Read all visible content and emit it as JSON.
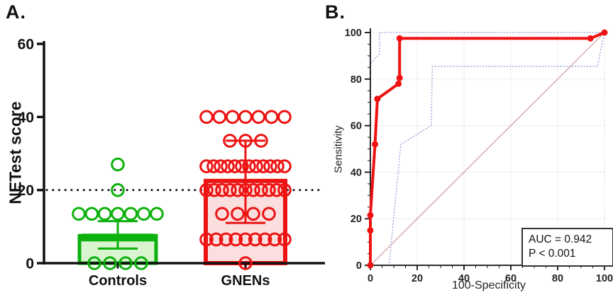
{
  "figure": {
    "background": "#ffffff",
    "panels": [
      {
        "label": "A."
      },
      {
        "label": "B."
      }
    ]
  },
  "chart_data": [
    {
      "panel": "A",
      "type": "bar",
      "title": "",
      "ylabel": "NETest score",
      "xlabel": "",
      "ylim": [
        0,
        60
      ],
      "yticks": [
        0,
        20,
        40,
        60
      ],
      "threshold_y": 20,
      "grid": false,
      "categories": [
        "Controls",
        "GNENs"
      ],
      "series": [
        {
          "name": "Controls",
          "color": "#0db10d",
          "fill": "#d8f5d0",
          "bar_value": 7.5,
          "error_low": 4,
          "error_high": 11.5,
          "points": [
            {
              "value": 0,
              "n": 4
            },
            {
              "value": 13.5,
              "n": 7
            },
            {
              "value": 20,
              "n": 1
            },
            {
              "value": 27,
              "n": 1
            }
          ]
        },
        {
          "name": "GNENs",
          "color": "#ee1212",
          "fill": "#fbdede",
          "bar_value": 22.5,
          "error_low": 11,
          "error_high": 33.5,
          "points": [
            {
              "value": 0,
              "n": 1
            },
            {
              "value": 6.5,
              "n": 9
            },
            {
              "value": 13.5,
              "n": 4
            },
            {
              "value": 20,
              "n": 11
            },
            {
              "value": 26.5,
              "n": 12
            },
            {
              "value": 33.5,
              "n": 3
            },
            {
              "value": 40,
              "n": 7
            }
          ]
        }
      ]
    },
    {
      "panel": "B",
      "type": "line",
      "title": "",
      "xlabel": "100-Specificity",
      "ylabel": "Sensitivity",
      "xlim": [
        0,
        100
      ],
      "ylim": [
        0,
        100
      ],
      "xticks": [
        0,
        20,
        40,
        60,
        80,
        100
      ],
      "yticks": [
        0,
        20,
        40,
        60,
        80,
        100
      ],
      "minor_tick_step": 5,
      "grid": true,
      "grid_color": "#d2d2d2",
      "roc_color": "#ee1212",
      "roc_points": [
        [
          0,
          0
        ],
        [
          0,
          15
        ],
        [
          0,
          21.5
        ],
        [
          2,
          52
        ],
        [
          3,
          71.5
        ],
        [
          12,
          78
        ],
        [
          12.5,
          80.5
        ],
        [
          12.5,
          97.5
        ],
        [
          94,
          97.5
        ],
        [
          100,
          100
        ]
      ],
      "ci_color": "#9a9ad2",
      "ci_upper": [
        [
          0,
          0
        ],
        [
          0,
          86.5
        ],
        [
          4,
          91
        ],
        [
          4,
          100
        ],
        [
          100,
          100
        ]
      ],
      "ci_lower": [
        [
          0,
          0
        ],
        [
          8,
          0
        ],
        [
          13,
          52
        ],
        [
          26,
          60
        ],
        [
          26.5,
          85.5
        ],
        [
          97,
          85.5
        ],
        [
          100,
          100
        ]
      ],
      "diagonal": [
        [
          0,
          0
        ],
        [
          100,
          100
        ]
      ],
      "diagonal_color": "#c89c9c",
      "annotation": {
        "line1": "AUC = 0.942",
        "line2": "P < 0.001"
      }
    }
  ]
}
